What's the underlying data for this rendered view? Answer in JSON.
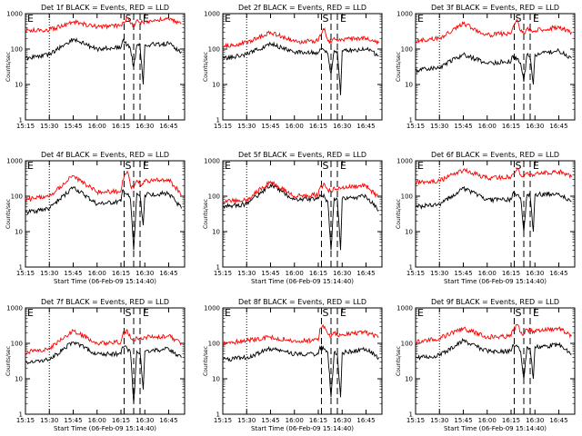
{
  "figure": {
    "x_ticks": [
      "15:15",
      "15:30",
      "15:45",
      "16:00",
      "16:15",
      "16:30",
      "16:45"
    ],
    "y_ticks": [
      "1",
      "10",
      "100",
      "1000"
    ],
    "ylabel": "Counts/sec",
    "xlabel": "Start Time (06-Feb-09 15:14:40)",
    "flags": [
      "E",
      "S",
      "E"
    ],
    "colors": {
      "events": "#000000",
      "lld": "#ff0000",
      "axes": "#000000",
      "background": "#ffffff"
    }
  },
  "chart_data": [
    {
      "type": "line",
      "title": "Det 1f BLACK = Events, RED = LLD",
      "ylabel": "Counts/sec",
      "y_scale": "log",
      "ylim": [
        1,
        1000
      ],
      "xlim": [
        "15:15",
        "16:55"
      ],
      "show_xlabel": false,
      "series": [
        {
          "name": "Events",
          "color": "black",
          "x": [
            "15:15",
            "15:30",
            "15:45",
            "16:00",
            "16:15",
            "16:16",
            "16:19",
            "16:21",
            "16:23",
            "16:25",
            "16:27",
            "16:29",
            "16:30",
            "16:45",
            "16:53"
          ],
          "y": [
            55,
            70,
            190,
            100,
            110,
            170,
            130,
            100,
            30,
            130,
            120,
            10,
            130,
            140,
            85
          ]
        },
        {
          "name": "LLD",
          "color": "red",
          "x": [
            "15:15",
            "15:30",
            "15:45",
            "16:00",
            "16:15",
            "16:16",
            "16:19",
            "16:21",
            "16:23",
            "16:25",
            "16:27",
            "16:29",
            "16:30",
            "16:45",
            "16:53"
          ],
          "y": [
            330,
            350,
            580,
            420,
            470,
            560,
            750,
            520,
            470,
            660,
            560,
            560,
            600,
            700,
            520
          ]
        }
      ]
    },
    {
      "type": "line",
      "title": "Det 2f BLACK = Events, RED = LLD",
      "ylabel": "Counts/sec",
      "y_scale": "log",
      "ylim": [
        1,
        1000
      ],
      "xlim": [
        "15:15",
        "16:55"
      ],
      "show_xlabel": false,
      "series": [
        {
          "name": "Events",
          "color": "black",
          "x": [
            "15:15",
            "15:30",
            "15:45",
            "16:00",
            "16:15",
            "16:16",
            "16:19",
            "16:21",
            "16:23",
            "16:25",
            "16:27",
            "16:29",
            "16:30",
            "16:45",
            "16:53"
          ],
          "y": [
            55,
            70,
            140,
            80,
            80,
            100,
            90,
            75,
            20,
            90,
            85,
            5,
            90,
            100,
            65
          ]
        },
        {
          "name": "LLD",
          "color": "red",
          "x": [
            "15:15",
            "15:30",
            "15:45",
            "16:00",
            "16:15",
            "16:16",
            "16:19",
            "16:21",
            "16:23",
            "16:25",
            "16:27",
            "16:29",
            "16:30",
            "16:45",
            "16:53"
          ],
          "y": [
            120,
            150,
            300,
            160,
            170,
            250,
            380,
            170,
            150,
            210,
            170,
            170,
            190,
            200,
            150
          ]
        }
      ]
    },
    {
      "type": "line",
      "title": "Det 3f BLACK = Events, RED = LLD",
      "ylabel": "Counts/sec",
      "y_scale": "log",
      "ylim": [
        1,
        1000
      ],
      "xlim": [
        "15:15",
        "16:55"
      ],
      "show_xlabel": false,
      "series": [
        {
          "name": "Events",
          "color": "black",
          "x": [
            "15:15",
            "15:30",
            "15:45",
            "16:00",
            "16:15",
            "16:16",
            "16:19",
            "16:21",
            "16:23",
            "16:25",
            "16:27",
            "16:29",
            "16:30",
            "16:45",
            "16:53"
          ],
          "y": [
            25,
            30,
            70,
            40,
            45,
            65,
            55,
            40,
            12,
            70,
            60,
            10,
            70,
            90,
            55
          ]
        },
        {
          "name": "LLD",
          "color": "red",
          "x": [
            "15:15",
            "15:30",
            "15:45",
            "16:00",
            "16:15",
            "16:16",
            "16:19",
            "16:21",
            "16:23",
            "16:25",
            "16:27",
            "16:29",
            "16:30",
            "16:45",
            "16:53"
          ],
          "y": [
            170,
            200,
            520,
            250,
            280,
            400,
            650,
            320,
            280,
            380,
            320,
            320,
            330,
            420,
            300
          ]
        }
      ]
    },
    {
      "type": "line",
      "title": "Det 4f BLACK = Events, RED = LLD",
      "ylabel": "Counts/sec",
      "y_scale": "log",
      "ylim": [
        1,
        1000
      ],
      "xlim": [
        "15:15",
        "16:55"
      ],
      "show_xlabel": true,
      "series": [
        {
          "name": "Events",
          "color": "black",
          "x": [
            "15:15",
            "15:30",
            "15:45",
            "16:00",
            "16:15",
            "16:16",
            "16:19",
            "16:21",
            "16:23",
            "16:25",
            "16:27",
            "16:29",
            "16:30",
            "16:45",
            "16:53"
          ],
          "y": [
            35,
            45,
            180,
            60,
            70,
            150,
            110,
            80,
            3,
            120,
            100,
            15,
            110,
            120,
            45
          ]
        },
        {
          "name": "LLD",
          "color": "red",
          "x": [
            "15:15",
            "15:30",
            "15:45",
            "16:00",
            "16:15",
            "16:16",
            "16:19",
            "16:21",
            "16:23",
            "16:25",
            "16:27",
            "16:29",
            "16:30",
            "16:45",
            "16:53"
          ],
          "y": [
            80,
            100,
            380,
            130,
            140,
            280,
            500,
            200,
            170,
            280,
            220,
            220,
            260,
            300,
            110
          ]
        }
      ]
    },
    {
      "type": "line",
      "title": "Det 5f BLACK = Events, RED = LLD",
      "ylabel": "Counts/sec",
      "y_scale": "log",
      "ylim": [
        1,
        1000
      ],
      "xlim": [
        "15:15",
        "16:55"
      ],
      "show_xlabel": true,
      "series": [
        {
          "name": "Events",
          "color": "black",
          "x": [
            "15:15",
            "15:30",
            "15:45",
            "16:00",
            "16:15",
            "16:16",
            "16:19",
            "16:21",
            "16:23",
            "16:25",
            "16:27",
            "16:29",
            "16:30",
            "16:45",
            "16:53"
          ],
          "y": [
            50,
            60,
            210,
            80,
            85,
            110,
            95,
            70,
            3,
            90,
            80,
            3,
            85,
            100,
            40
          ]
        },
        {
          "name": "LLD",
          "color": "red",
          "x": [
            "15:15",
            "15:30",
            "15:45",
            "16:00",
            "16:15",
            "16:16",
            "16:19",
            "16:21",
            "16:23",
            "16:25",
            "16:27",
            "16:29",
            "16:30",
            "16:45",
            "16:53"
          ],
          "y": [
            70,
            80,
            260,
            100,
            110,
            170,
            220,
            150,
            130,
            180,
            160,
            160,
            170,
            200,
            90
          ]
        }
      ]
    },
    {
      "type": "line",
      "title": "Det 6f BLACK = Events, RED = LLD",
      "ylabel": "Counts/sec",
      "y_scale": "log",
      "ylim": [
        1,
        1000
      ],
      "xlim": [
        "15:15",
        "16:55"
      ],
      "show_xlabel": true,
      "series": [
        {
          "name": "Events",
          "color": "black",
          "x": [
            "15:15",
            "15:30",
            "15:45",
            "16:00",
            "16:15",
            "16:16",
            "16:19",
            "16:21",
            "16:23",
            "16:25",
            "16:27",
            "16:29",
            "16:30",
            "16:45",
            "16:53"
          ],
          "y": [
            50,
            60,
            170,
            80,
            80,
            120,
            110,
            90,
            10,
            110,
            100,
            10,
            110,
            120,
            70
          ]
        },
        {
          "name": "LLD",
          "color": "red",
          "x": [
            "15:15",
            "15:30",
            "15:45",
            "16:00",
            "16:15",
            "16:16",
            "16:19",
            "16:21",
            "16:23",
            "16:25",
            "16:27",
            "16:29",
            "16:30",
            "16:45",
            "16:53"
          ],
          "y": [
            250,
            270,
            550,
            330,
            350,
            420,
            620,
            400,
            350,
            460,
            400,
            400,
            420,
            500,
            350
          ]
        }
      ]
    },
    {
      "type": "line",
      "title": "Det 7f BLACK = Events, RED = LLD",
      "ylabel": "Counts/sec",
      "y_scale": "log",
      "ylim": [
        1,
        1000
      ],
      "xlim": [
        "15:15",
        "16:55"
      ],
      "show_xlabel": true,
      "series": [
        {
          "name": "Events",
          "color": "black",
          "x": [
            "15:15",
            "15:30",
            "15:45",
            "16:00",
            "16:15",
            "16:16",
            "16:19",
            "16:21",
            "16:23",
            "16:25",
            "16:27",
            "16:29",
            "16:30",
            "16:45",
            "16:53"
          ],
          "y": [
            30,
            35,
            110,
            50,
            50,
            80,
            70,
            55,
            2,
            60,
            55,
            5,
            60,
            70,
            40
          ]
        },
        {
          "name": "LLD",
          "color": "red",
          "x": [
            "15:15",
            "15:30",
            "15:45",
            "16:00",
            "16:15",
            "16:16",
            "16:19",
            "16:21",
            "16:23",
            "16:25",
            "16:27",
            "16:29",
            "16:30",
            "16:45",
            "16:53"
          ],
          "y": [
            55,
            70,
            230,
            100,
            110,
            170,
            240,
            140,
            120,
            150,
            130,
            130,
            150,
            160,
            100
          ]
        }
      ]
    },
    {
      "type": "line",
      "title": "Det 8f BLACK = Events, RED = LLD",
      "ylabel": "Counts/sec",
      "y_scale": "log",
      "ylim": [
        1,
        1000
      ],
      "xlim": [
        "15:15",
        "16:55"
      ],
      "show_xlabel": true,
      "series": [
        {
          "name": "Events",
          "color": "black",
          "x": [
            "15:15",
            "15:30",
            "15:45",
            "16:00",
            "16:15",
            "16:16",
            "16:19",
            "16:21",
            "16:23",
            "16:25",
            "16:27",
            "16:29",
            "16:30",
            "16:45",
            "16:53"
          ],
          "y": [
            35,
            40,
            70,
            50,
            50,
            80,
            70,
            55,
            3,
            55,
            50,
            3,
            55,
            70,
            40
          ]
        },
        {
          "name": "LLD",
          "color": "red",
          "x": [
            "15:15",
            "15:30",
            "15:45",
            "16:00",
            "16:15",
            "16:16",
            "16:19",
            "16:21",
            "16:23",
            "16:25",
            "16:27",
            "16:29",
            "16:30",
            "16:45",
            "16:53"
          ],
          "y": [
            100,
            120,
            150,
            120,
            120,
            260,
            300,
            180,
            150,
            200,
            170,
            170,
            180,
            200,
            150
          ]
        }
      ]
    },
    {
      "type": "line",
      "title": "Det 9f BLACK = Events, RED = LLD",
      "ylabel": "Counts/sec",
      "y_scale": "log",
      "ylim": [
        1,
        1000
      ],
      "xlim": [
        "15:15",
        "16:55"
      ],
      "show_xlabel": true,
      "series": [
        {
          "name": "Events",
          "color": "black",
          "x": [
            "15:15",
            "15:30",
            "15:45",
            "16:00",
            "16:15",
            "16:16",
            "16:19",
            "16:21",
            "16:23",
            "16:25",
            "16:27",
            "16:29",
            "16:30",
            "16:45",
            "16:53"
          ],
          "y": [
            40,
            45,
            120,
            60,
            60,
            90,
            80,
            60,
            10,
            80,
            70,
            10,
            80,
            90,
            50
          ]
        },
        {
          "name": "LLD",
          "color": "red",
          "x": [
            "15:15",
            "15:30",
            "15:45",
            "16:00",
            "16:15",
            "16:16",
            "16:19",
            "16:21",
            "16:23",
            "16:25",
            "16:27",
            "16:29",
            "16:30",
            "16:45",
            "16:53"
          ],
          "y": [
            110,
            140,
            260,
            150,
            160,
            240,
            340,
            200,
            180,
            250,
            220,
            220,
            230,
            270,
            160
          ]
        }
      ]
    }
  ]
}
